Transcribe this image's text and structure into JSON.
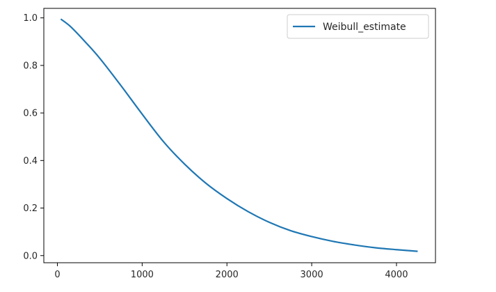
{
  "chart_data": {
    "type": "line",
    "title": "",
    "xlabel": "",
    "ylabel": "",
    "xlim": [
      -160,
      4460
    ],
    "ylim": [
      -0.03,
      1.04
    ],
    "x_ticks": [
      0,
      1000,
      2000,
      3000,
      4000
    ],
    "y_ticks": [
      0.0,
      0.2,
      0.4,
      0.6,
      0.8,
      1.0
    ],
    "x_tick_labels": [
      "0",
      "1000",
      "2000",
      "3000",
      "4000"
    ],
    "y_tick_labels": [
      "0.0",
      "0.2",
      "0.4",
      "0.6",
      "0.8",
      "1.0"
    ],
    "grid": false,
    "legend": {
      "position": "top-right"
    },
    "series": [
      {
        "name": "Weibull_estimate",
        "color": "#1f77b4",
        "x": [
          40,
          150,
          300,
          500,
          750,
          1000,
          1250,
          1500,
          1750,
          2000,
          2250,
          2500,
          2750,
          3000,
          3250,
          3500,
          3750,
          4000,
          4250
        ],
        "y": [
          0.995,
          0.965,
          0.91,
          0.83,
          0.715,
          0.595,
          0.48,
          0.385,
          0.305,
          0.24,
          0.185,
          0.14,
          0.105,
          0.08,
          0.06,
          0.045,
          0.033,
          0.025,
          0.018
        ]
      }
    ]
  }
}
